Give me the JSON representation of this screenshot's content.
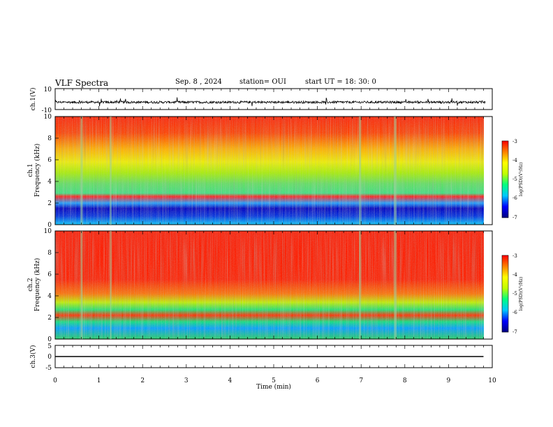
{
  "header": {
    "title": "VLF Spectra",
    "date": "Sep. 8 , 2024",
    "station": "station= OUI",
    "start_ut": "start UT =  18: 30: 0"
  },
  "chart_data": [
    {
      "id": "ch1-waveform",
      "type": "line",
      "ylabel": "ch.1(V)",
      "yticklabels": [
        "10",
        "-10"
      ],
      "ylim": [
        -10,
        10
      ],
      "xlim": [
        0,
        10
      ],
      "signal": "noisy waveform around -3 V with spikes",
      "color": "#000000"
    },
    {
      "id": "ch1-spectrogram",
      "type": "heatmap",
      "ylabel_lines": [
        "ch.1",
        "Frequency (kHz)"
      ],
      "yticklabels": [
        "0",
        "2",
        "4",
        "6",
        "8",
        "10"
      ],
      "ylim": [
        0,
        10
      ],
      "xlim": [
        0,
        10
      ],
      "colorbar": {
        "label": "log(PSD)(V²/Hz)",
        "ticklabels": [
          "-3",
          "-4",
          "-5",
          "-6",
          "-7"
        ],
        "range": [
          -7,
          -3
        ]
      }
    },
    {
      "id": "ch2-spectrogram",
      "type": "heatmap",
      "ylabel_lines": [
        "ch.2",
        "Frequency (kHz)"
      ],
      "yticklabels": [
        "0",
        "2",
        "4",
        "6",
        "8",
        "10"
      ],
      "ylim": [
        0,
        10
      ],
      "xlim": [
        0,
        10
      ],
      "colorbar": {
        "label": "log(PSD)(V²/Hz)",
        "ticklabels": [
          "-3",
          "-4",
          "-5",
          "-6",
          "-7"
        ],
        "range": [
          -7,
          -3
        ]
      }
    },
    {
      "id": "ch3-waveform",
      "type": "line",
      "ylabel": "ch.3(V)",
      "yticklabels": [
        "5",
        "0",
        "-5"
      ],
      "ylim": [
        -5,
        5
      ],
      "xlim": [
        0,
        10
      ],
      "x": [
        0,
        9.8
      ],
      "y": [
        0,
        0
      ],
      "color": "#000000"
    }
  ],
  "xaxis": {
    "label": "Time (min)",
    "ticklabels": [
      "0",
      "1",
      "2",
      "3",
      "4",
      "5",
      "6",
      "7",
      "8",
      "9",
      "10"
    ],
    "range": [
      0,
      10
    ]
  },
  "colormap": [
    "#000080",
    "#0000ff",
    "#00c8ff",
    "#00ff80",
    "#c0ff00",
    "#ffff00",
    "#ff8000",
    "#ff0000",
    "#ffffff"
  ]
}
